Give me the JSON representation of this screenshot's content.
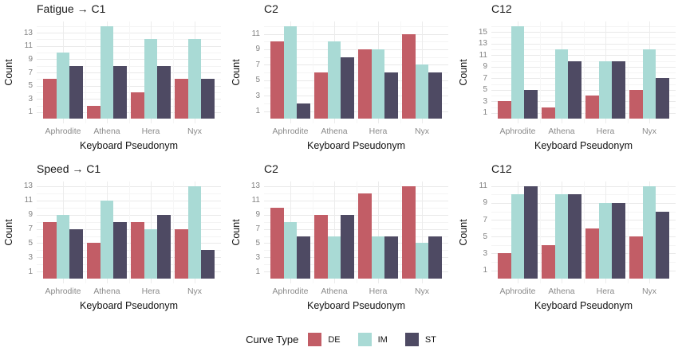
{
  "figure": {
    "x_axis_title": "Keyboard Pseudonym",
    "y_axis_title": "Count",
    "categories": [
      "Aphrodite",
      "Athena",
      "Hera",
      "Nyx"
    ]
  },
  "legend": {
    "title": "Curve Type",
    "position": "bottom",
    "entries": [
      {
        "label": "DE",
        "color": "#c25d66"
      },
      {
        "label": "IM",
        "color": "#a9dad5"
      },
      {
        "label": "ST",
        "color": "#4e4a63"
      }
    ]
  },
  "chart_data": [
    {
      "type": "bar",
      "title": "Fatigue → C1",
      "categories": [
        "Aphrodite",
        "Athena",
        "Hera",
        "Nyx"
      ],
      "series": [
        {
          "name": "DE",
          "values": [
            6,
            2,
            4,
            6
          ]
        },
        {
          "name": "IM",
          "values": [
            10,
            14,
            12,
            12
          ]
        },
        {
          "name": "ST",
          "values": [
            8,
            8,
            8,
            6
          ]
        }
      ],
      "xlabel": "Keyboard Pseudonym",
      "ylabel": "Count",
      "yticks": [
        1,
        3,
        5,
        7,
        9,
        11,
        13
      ],
      "ylim": [
        0,
        14
      ],
      "grid": true
    },
    {
      "type": "bar",
      "title": "C2",
      "categories": [
        "Aphrodite",
        "Athena",
        "Hera",
        "Nyx"
      ],
      "series": [
        {
          "name": "DE",
          "values": [
            10,
            6,
            9,
            11
          ]
        },
        {
          "name": "IM",
          "values": [
            12,
            10,
            9,
            7
          ]
        },
        {
          "name": "ST",
          "values": [
            2,
            8,
            6,
            6
          ]
        }
      ],
      "xlabel": "Keyboard Pseudonym",
      "ylabel": "Count",
      "yticks": [
        1,
        3,
        5,
        7,
        9,
        11
      ],
      "ylim": [
        0,
        12
      ],
      "grid": true
    },
    {
      "type": "bar",
      "title": "C12",
      "categories": [
        "Aphrodite",
        "Athena",
        "Hera",
        "Nyx"
      ],
      "series": [
        {
          "name": "DE",
          "values": [
            3,
            2,
            4,
            5
          ]
        },
        {
          "name": "IM",
          "values": [
            16,
            12,
            10,
            12
          ]
        },
        {
          "name": "ST",
          "values": [
            5,
            10,
            10,
            7
          ]
        }
      ],
      "xlabel": "Keyboard Pseudonym",
      "ylabel": "Count",
      "yticks": [
        1,
        3,
        5,
        7,
        9,
        11,
        13,
        15
      ],
      "ylim": [
        0,
        16
      ],
      "grid": true
    },
    {
      "type": "bar",
      "title": "Speed → C1",
      "categories": [
        "Aphrodite",
        "Athena",
        "Hera",
        "Nyx"
      ],
      "series": [
        {
          "name": "DE",
          "values": [
            8,
            5,
            8,
            7
          ]
        },
        {
          "name": "IM",
          "values": [
            9,
            11,
            7,
            13
          ]
        },
        {
          "name": "ST",
          "values": [
            7,
            8,
            9,
            4
          ]
        }
      ],
      "xlabel": "Keyboard Pseudonym",
      "ylabel": "Count",
      "yticks": [
        1,
        3,
        5,
        7,
        9,
        11,
        13
      ],
      "ylim": [
        0,
        13
      ],
      "grid": true
    },
    {
      "type": "bar",
      "title": "C2",
      "categories": [
        "Aphrodite",
        "Athena",
        "Hera",
        "Nyx"
      ],
      "series": [
        {
          "name": "DE",
          "values": [
            10,
            9,
            12,
            13
          ]
        },
        {
          "name": "IM",
          "values": [
            8,
            6,
            6,
            5
          ]
        },
        {
          "name": "ST",
          "values": [
            6,
            9,
            6,
            6
          ]
        }
      ],
      "xlabel": "Keyboard Pseudonym",
      "ylabel": "Count",
      "yticks": [
        1,
        3,
        5,
        7,
        9,
        11,
        13
      ],
      "ylim": [
        0,
        13
      ],
      "grid": true
    },
    {
      "type": "bar",
      "title": "C12",
      "categories": [
        "Aphrodite",
        "Athena",
        "Hera",
        "Nyx"
      ],
      "series": [
        {
          "name": "DE",
          "values": [
            3,
            4,
            6,
            5
          ]
        },
        {
          "name": "IM",
          "values": [
            10,
            10,
            9,
            11
          ]
        },
        {
          "name": "ST",
          "values": [
            11,
            10,
            9,
            8
          ]
        }
      ],
      "xlabel": "Keyboard Pseudonym",
      "ylabel": "Count",
      "yticks": [
        1,
        3,
        5,
        7,
        9,
        11
      ],
      "ylim": [
        0,
        11
      ],
      "grid": true
    }
  ]
}
